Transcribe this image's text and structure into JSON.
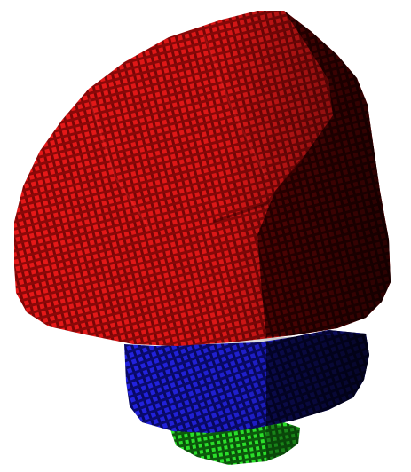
{
  "scene": {
    "background": "#ffffff",
    "object": "voxel-mushroom-shape",
    "parts": [
      {
        "name": "cap",
        "base_color": "#e01414",
        "shadow_color": "#2a0000",
        "voxel_count": "many"
      },
      {
        "name": "stem-band",
        "base_color": "#1a1ad8",
        "shadow_color": "#050530"
      },
      {
        "name": "base",
        "base_color": "#22cc22",
        "shadow_color": "#0a3a0a"
      }
    ]
  }
}
